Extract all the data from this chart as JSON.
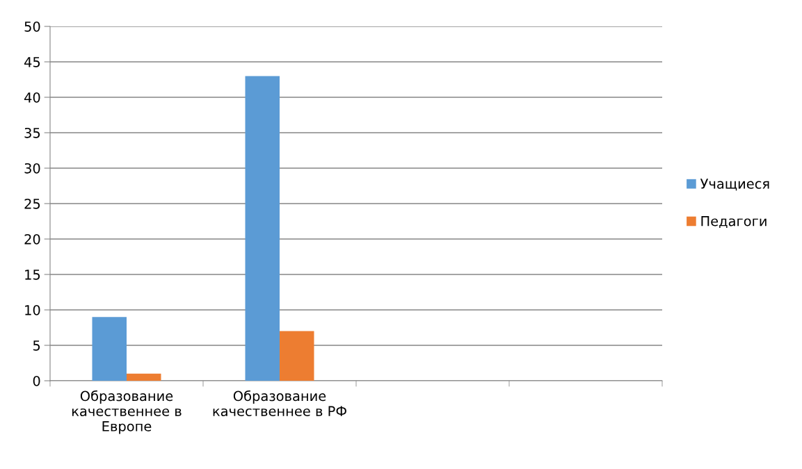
{
  "chart_data": {
    "type": "bar",
    "categories": [
      "Образование\nкачественнее в\nЕвропе",
      "Образование\nкачественнее в РФ",
      null,
      null
    ],
    "series": [
      {
        "name": "Учащиеся",
        "color": "#5b9bd5",
        "values": [
          9,
          43,
          null,
          null
        ]
      },
      {
        "name": "Педагоги",
        "color": "#ed7d31",
        "values": [
          1,
          7,
          null,
          null
        ]
      }
    ],
    "ylim": [
      0,
      50
    ],
    "yticks": [
      0,
      5,
      10,
      15,
      20,
      25,
      30,
      35,
      40,
      45,
      50
    ],
    "grid": "y",
    "legend": "right"
  }
}
